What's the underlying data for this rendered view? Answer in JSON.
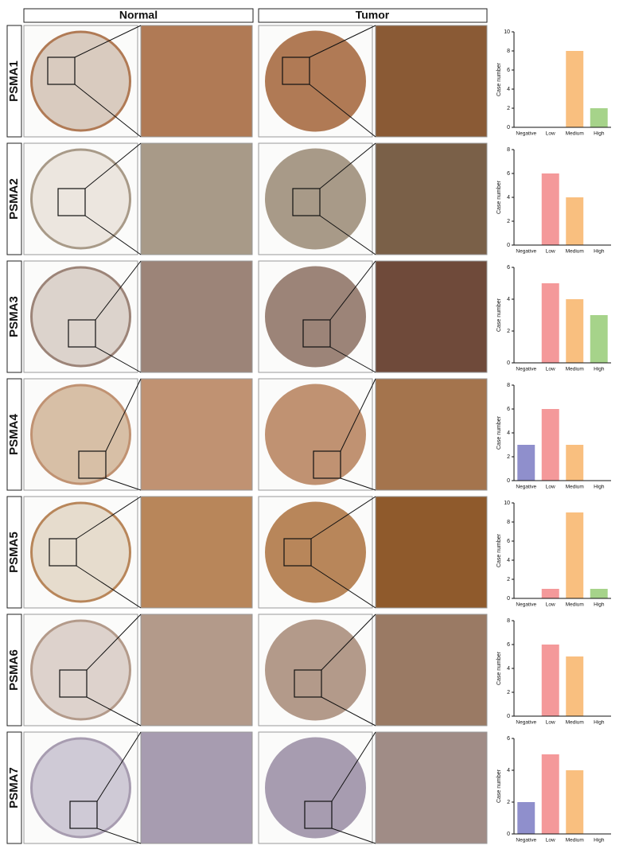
{
  "columns": [
    "Normal",
    "Tumor"
  ],
  "chart_data": [
    {
      "type": "bar",
      "title": "PSMA1",
      "ylabel": "Case number",
      "categories": [
        "Negative",
        "Low",
        "Medium",
        "High"
      ],
      "values": [
        0,
        0,
        8,
        2
      ],
      "colors": [
        "#8f8fcc",
        "#f4999a",
        "#f9bf7f",
        "#a6d38a"
      ],
      "ylim": [
        0,
        10
      ],
      "yticks": [
        0,
        2,
        4,
        6,
        8,
        10
      ]
    },
    {
      "type": "bar",
      "title": "PSMA2",
      "ylabel": "Case number",
      "categories": [
        "Negative",
        "Low",
        "Medium",
        "High"
      ],
      "values": [
        0,
        6,
        4,
        0
      ],
      "colors": [
        "#8f8fcc",
        "#f4999a",
        "#f9bf7f",
        "#a6d38a"
      ],
      "ylim": [
        0,
        8
      ],
      "yticks": [
        0,
        2,
        4,
        6,
        8
      ]
    },
    {
      "type": "bar",
      "title": "PSMA3",
      "ylabel": "Case number",
      "categories": [
        "Negative",
        "Low",
        "Medium",
        "High"
      ],
      "values": [
        0,
        5,
        4,
        3
      ],
      "colors": [
        "#8f8fcc",
        "#f4999a",
        "#f9bf7f",
        "#a6d38a"
      ],
      "ylim": [
        0,
        6
      ],
      "yticks": [
        0,
        2,
        4,
        6
      ]
    },
    {
      "type": "bar",
      "title": "PSMA4",
      "ylabel": "Case number",
      "categories": [
        "Negative",
        "Low",
        "Medium",
        "High"
      ],
      "values": [
        3,
        6,
        3,
        0
      ],
      "colors": [
        "#8f8fcc",
        "#f4999a",
        "#f9bf7f",
        "#a6d38a"
      ],
      "ylim": [
        0,
        8
      ],
      "yticks": [
        0,
        2,
        4,
        6,
        8
      ]
    },
    {
      "type": "bar",
      "title": "PSMA5",
      "ylabel": "Case number",
      "categories": [
        "Negative",
        "Low",
        "Medium",
        "High"
      ],
      "values": [
        0,
        1,
        9,
        1
      ],
      "colors": [
        "#8f8fcc",
        "#f4999a",
        "#f9bf7f",
        "#a6d38a"
      ],
      "ylim": [
        0,
        10
      ],
      "yticks": [
        0,
        2,
        4,
        6,
        8,
        10
      ]
    },
    {
      "type": "bar",
      "title": "PSMA6",
      "ylabel": "Case number",
      "categories": [
        "Negative",
        "Low",
        "Medium",
        "High"
      ],
      "values": [
        0,
        6,
        5,
        0
      ],
      "colors": [
        "#8f8fcc",
        "#f4999a",
        "#f9bf7f",
        "#a6d38a"
      ],
      "ylim": [
        0,
        8
      ],
      "yticks": [
        0,
        2,
        4,
        6,
        8
      ]
    },
    {
      "type": "bar",
      "title": "PSMA7",
      "ylabel": "Case number",
      "categories": [
        "Negative",
        "Low",
        "Medium",
        "High"
      ],
      "values": [
        2,
        5,
        4,
        0
      ],
      "colors": [
        "#8f8fcc",
        "#f4999a",
        "#f9bf7f",
        "#a6d38a"
      ],
      "ylim": [
        0,
        6
      ],
      "yticks": [
        0,
        2,
        4,
        6
      ]
    }
  ]
}
